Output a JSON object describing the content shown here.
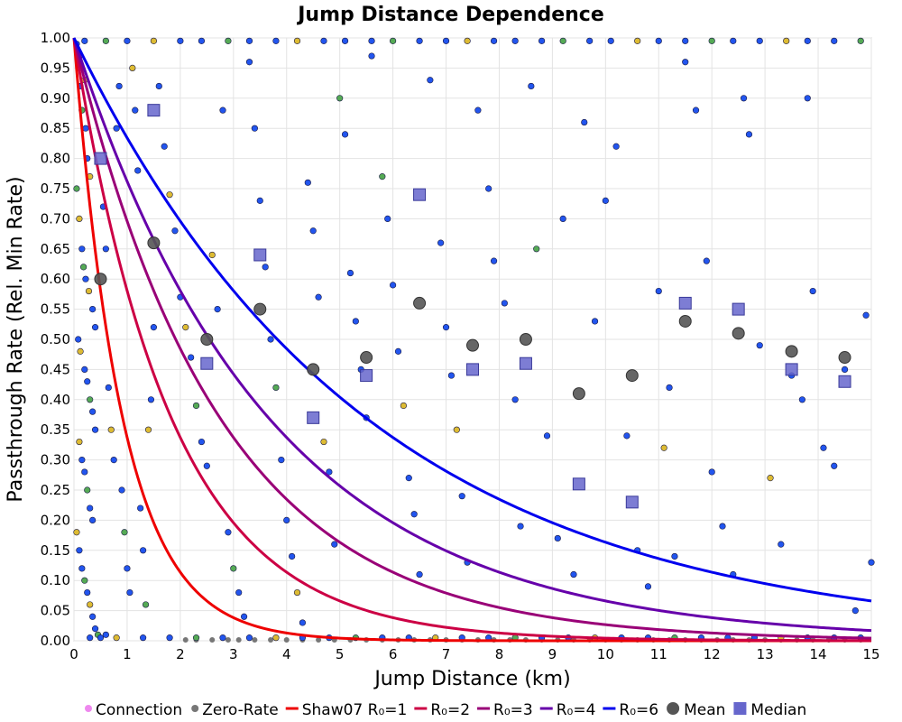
{
  "chart_data": {
    "type": "scatter",
    "title": "Jump Distance Dependence",
    "xlabel": "Jump Distance (km)",
    "ylabel": "Passthrough Rate (Rel. Min Rate)",
    "xlim": [
      0,
      15
    ],
    "ylim": [
      0,
      1
    ],
    "x_ticks": [
      0,
      1,
      2,
      3,
      4,
      5,
      6,
      7,
      8,
      9,
      10,
      11,
      12,
      13,
      14,
      15
    ],
    "y_ticks": [
      "0.00",
      "0.05",
      "0.10",
      "0.15",
      "0.20",
      "0.25",
      "0.30",
      "0.35",
      "0.40",
      "0.45",
      "0.50",
      "0.55",
      "0.60",
      "0.65",
      "0.70",
      "0.75",
      "0.80",
      "0.85",
      "0.90",
      "0.95",
      "1.00"
    ],
    "grid": true,
    "legend_position": "bottom",
    "legend": [
      {
        "label": "Connection",
        "kind": "dot",
        "color": "#ee88ee"
      },
      {
        "label": "Zero-Rate",
        "kind": "dot",
        "color": "#777777"
      },
      {
        "label": "Shaw07 R₀=1",
        "kind": "line",
        "color": "#ee0000"
      },
      {
        "label": "R₀=2",
        "kind": "line",
        "color": "#cc0044"
      },
      {
        "label": "R₀=3",
        "kind": "line",
        "color": "#990077"
      },
      {
        "label": "R₀=4",
        "kind": "line",
        "color": "#6600aa"
      },
      {
        "label": "R₀=6",
        "kind": "line",
        "color": "#0000ee"
      },
      {
        "label": "Mean",
        "kind": "circle",
        "color": "#555555"
      },
      {
        "label": "Median",
        "kind": "square",
        "color": "#6666cc"
      }
    ],
    "curves": [
      {
        "name": "Shaw07 R₀=1",
        "r0": 1,
        "color": "#ee0000"
      },
      {
        "name": "R₀=2",
        "r0": 2,
        "color": "#cc0044"
      },
      {
        "name": "R₀=3",
        "r0": 3,
        "color": "#990077"
      },
      {
        "name": "R₀=4",
        "r0": 4,
        "color": "#6600aa"
      },
      {
        "name": "R₀=6",
        "r0": 6,
        "color": "#0000ee"
      }
    ],
    "mean": {
      "x": [
        0.5,
        1.5,
        2.5,
        3.5,
        4.5,
        5.5,
        6.5,
        7.5,
        8.5,
        9.5,
        10.5,
        11.5,
        12.5,
        13.5,
        14.5
      ],
      "y": [
        0.6,
        0.66,
        0.5,
        0.55,
        0.45,
        0.47,
        0.56,
        0.49,
        0.5,
        0.41,
        0.44,
        0.53,
        0.51,
        0.48,
        0.47
      ]
    },
    "median": {
      "x": [
        0.5,
        1.5,
        2.5,
        3.5,
        4.5,
        5.5,
        6.5,
        7.5,
        8.5,
        9.5,
        10.5,
        11.5,
        12.5,
        13.5,
        14.5
      ],
      "y": [
        0.8,
        0.88,
        0.46,
        0.64,
        0.37,
        0.44,
        0.74,
        0.45,
        0.46,
        0.26,
        0.23,
        0.56,
        0.55,
        0.45,
        0.43
      ]
    },
    "connection_points": {
      "note_colors": [
        "#2255ee",
        "#55aa55",
        "#ddbb33"
      ],
      "points": [
        [
          0.05,
          0.99,
          0
        ],
        [
          0.1,
          0.97,
          2
        ],
        [
          0.12,
          0.92,
          0
        ],
        [
          0.15,
          0.88,
          1
        ],
        [
          0.2,
          0.93,
          2
        ],
        [
          0.22,
          0.85,
          0
        ],
        [
          0.25,
          0.8,
          0
        ],
        [
          0.3,
          0.77,
          2
        ],
        [
          0.05,
          0.75,
          1
        ],
        [
          0.1,
          0.7,
          2
        ],
        [
          0.15,
          0.65,
          0
        ],
        [
          0.18,
          0.62,
          1
        ],
        [
          0.22,
          0.6,
          0
        ],
        [
          0.28,
          0.58,
          2
        ],
        [
          0.35,
          0.55,
          0
        ],
        [
          0.4,
          0.52,
          0
        ],
        [
          0.08,
          0.5,
          0
        ],
        [
          0.12,
          0.48,
          2
        ],
        [
          0.2,
          0.45,
          0
        ],
        [
          0.25,
          0.43,
          0
        ],
        [
          0.3,
          0.4,
          1
        ],
        [
          0.35,
          0.38,
          0
        ],
        [
          0.4,
          0.35,
          0
        ],
        [
          0.1,
          0.33,
          2
        ],
        [
          0.15,
          0.3,
          0
        ],
        [
          0.2,
          0.28,
          0
        ],
        [
          0.25,
          0.25,
          1
        ],
        [
          0.3,
          0.22,
          0
        ],
        [
          0.35,
          0.2,
          0
        ],
        [
          0.05,
          0.18,
          2
        ],
        [
          0.1,
          0.15,
          0
        ],
        [
          0.15,
          0.12,
          0
        ],
        [
          0.2,
          0.1,
          1
        ],
        [
          0.25,
          0.08,
          0
        ],
        [
          0.3,
          0.06,
          2
        ],
        [
          0.35,
          0.04,
          0
        ],
        [
          0.4,
          0.02,
          0
        ],
        [
          0.45,
          0.01,
          1
        ],
        [
          0.5,
          0.005,
          0
        ],
        [
          0.6,
          0.01,
          0
        ],
        [
          0.55,
          0.72,
          0
        ],
        [
          0.6,
          0.65,
          0
        ],
        [
          0.65,
          0.42,
          0
        ],
        [
          0.7,
          0.35,
          2
        ],
        [
          0.75,
          0.3,
          0
        ],
        [
          0.8,
          0.85,
          0
        ],
        [
          0.85,
          0.92,
          0
        ],
        [
          0.9,
          0.25,
          0
        ],
        [
          0.95,
          0.18,
          1
        ],
        [
          1.0,
          0.12,
          0
        ],
        [
          1.05,
          0.08,
          0
        ],
        [
          1.1,
          0.95,
          2
        ],
        [
          1.15,
          0.88,
          0
        ],
        [
          1.2,
          0.78,
          0
        ],
        [
          1.25,
          0.22,
          0
        ],
        [
          1.3,
          0.15,
          0
        ],
        [
          1.35,
          0.06,
          1
        ],
        [
          1.4,
          0.35,
          2
        ],
        [
          1.45,
          0.4,
          0
        ],
        [
          1.5,
          0.52,
          0
        ],
        [
          1.6,
          0.92,
          0
        ],
        [
          1.7,
          0.82,
          0
        ],
        [
          1.8,
          0.74,
          2
        ],
        [
          1.9,
          0.68,
          0
        ],
        [
          2.0,
          0.57,
          0
        ],
        [
          2.1,
          0.52,
          2
        ],
        [
          2.2,
          0.47,
          0
        ],
        [
          2.3,
          0.39,
          1
        ],
        [
          2.4,
          0.33,
          0
        ],
        [
          2.5,
          0.29,
          0
        ],
        [
          2.6,
          0.64,
          2
        ],
        [
          2.7,
          0.55,
          0
        ],
        [
          2.8,
          0.88,
          0
        ],
        [
          2.9,
          0.18,
          0
        ],
        [
          3.0,
          0.12,
          1
        ],
        [
          3.1,
          0.08,
          0
        ],
        [
          3.2,
          0.04,
          0
        ],
        [
          3.3,
          0.96,
          0
        ],
        [
          3.4,
          0.85,
          0
        ],
        [
          3.5,
          0.73,
          0
        ],
        [
          3.6,
          0.62,
          0
        ],
        [
          3.7,
          0.5,
          0
        ],
        [
          3.8,
          0.42,
          1
        ],
        [
          3.9,
          0.3,
          0
        ],
        [
          4.0,
          0.2,
          0
        ],
        [
          4.1,
          0.14,
          0
        ],
        [
          4.2,
          0.08,
          2
        ],
        [
          4.3,
          0.03,
          0
        ],
        [
          4.4,
          0.76,
          0
        ],
        [
          4.5,
          0.68,
          0
        ],
        [
          4.6,
          0.57,
          0
        ],
        [
          4.7,
          0.33,
          2
        ],
        [
          4.8,
          0.28,
          0
        ],
        [
          4.9,
          0.16,
          0
        ],
        [
          5.0,
          0.9,
          1
        ],
        [
          5.1,
          0.84,
          0
        ],
        [
          5.2,
          0.61,
          0
        ],
        [
          5.3,
          0.53,
          0
        ],
        [
          5.4,
          0.45,
          0
        ],
        [
          5.5,
          0.37,
          0
        ],
        [
          5.6,
          0.97,
          0
        ],
        [
          5.8,
          0.77,
          1
        ],
        [
          5.9,
          0.7,
          0
        ],
        [
          6.0,
          0.59,
          0
        ],
        [
          6.1,
          0.48,
          0
        ],
        [
          6.2,
          0.39,
          2
        ],
        [
          6.3,
          0.27,
          0
        ],
        [
          6.4,
          0.21,
          0
        ],
        [
          6.5,
          0.11,
          0
        ],
        [
          6.7,
          0.93,
          0
        ],
        [
          6.9,
          0.66,
          0
        ],
        [
          7.0,
          0.52,
          0
        ],
        [
          7.1,
          0.44,
          0
        ],
        [
          7.2,
          0.35,
          2
        ],
        [
          7.3,
          0.24,
          0
        ],
        [
          7.4,
          0.13,
          0
        ],
        [
          7.6,
          0.88,
          0
        ],
        [
          7.8,
          0.75,
          0
        ],
        [
          7.9,
          0.63,
          0
        ],
        [
          8.1,
          0.56,
          0
        ],
        [
          8.3,
          0.4,
          0
        ],
        [
          8.4,
          0.19,
          0
        ],
        [
          8.6,
          0.92,
          0
        ],
        [
          8.7,
          0.65,
          1
        ],
        [
          8.9,
          0.34,
          0
        ],
        [
          9.1,
          0.17,
          0
        ],
        [
          9.2,
          0.7,
          0
        ],
        [
          9.4,
          0.11,
          0
        ],
        [
          9.6,
          0.86,
          0
        ],
        [
          9.8,
          0.53,
          0
        ],
        [
          10.0,
          0.73,
          0
        ],
        [
          10.2,
          0.82,
          0
        ],
        [
          10.4,
          0.34,
          0
        ],
        [
          10.6,
          0.15,
          0
        ],
        [
          10.8,
          0.09,
          0
        ],
        [
          11.0,
          0.58,
          0
        ],
        [
          11.1,
          0.32,
          2
        ],
        [
          11.2,
          0.42,
          0
        ],
        [
          11.3,
          0.14,
          0
        ],
        [
          11.5,
          0.96,
          0
        ],
        [
          11.7,
          0.88,
          0
        ],
        [
          11.9,
          0.63,
          0
        ],
        [
          12.0,
          0.28,
          0
        ],
        [
          12.2,
          0.19,
          0
        ],
        [
          12.4,
          0.11,
          0
        ],
        [
          12.6,
          0.9,
          0
        ],
        [
          12.7,
          0.84,
          0
        ],
        [
          12.9,
          0.49,
          0
        ],
        [
          13.1,
          0.27,
          2
        ],
        [
          13.3,
          0.16,
          0
        ],
        [
          13.5,
          0.44,
          0
        ],
        [
          13.7,
          0.4,
          0
        ],
        [
          13.8,
          0.9,
          0
        ],
        [
          13.9,
          0.58,
          0
        ],
        [
          14.1,
          0.32,
          0
        ],
        [
          14.3,
          0.29,
          0
        ],
        [
          14.5,
          0.45,
          0
        ],
        [
          14.7,
          0.05,
          0
        ],
        [
          14.9,
          0.54,
          0
        ],
        [
          15.0,
          0.13,
          0
        ],
        [
          0.2,
          0.995,
          0
        ],
        [
          0.6,
          0.995,
          1
        ],
        [
          1.0,
          0.995,
          0
        ],
        [
          1.5,
          0.995,
          2
        ],
        [
          2.0,
          0.995,
          0
        ],
        [
          2.4,
          0.995,
          0
        ],
        [
          2.9,
          0.995,
          1
        ],
        [
          3.3,
          0.995,
          0
        ],
        [
          3.8,
          0.995,
          0
        ],
        [
          4.2,
          0.995,
          2
        ],
        [
          4.7,
          0.995,
          0
        ],
        [
          5.1,
          0.995,
          0
        ],
        [
          5.6,
          0.995,
          0
        ],
        [
          6.0,
          0.995,
          1
        ],
        [
          6.5,
          0.995,
          0
        ],
        [
          7.0,
          0.995,
          0
        ],
        [
          7.4,
          0.995,
          2
        ],
        [
          7.9,
          0.995,
          0
        ],
        [
          8.3,
          0.995,
          0
        ],
        [
          8.8,
          0.995,
          0
        ],
        [
          9.2,
          0.995,
          1
        ],
        [
          9.7,
          0.995,
          0
        ],
        [
          10.1,
          0.995,
          0
        ],
        [
          10.6,
          0.995,
          2
        ],
        [
          11.0,
          0.995,
          0
        ],
        [
          11.5,
          0.995,
          0
        ],
        [
          12.0,
          0.995,
          1
        ],
        [
          12.4,
          0.995,
          0
        ],
        [
          12.9,
          0.995,
          0
        ],
        [
          13.4,
          0.995,
          2
        ],
        [
          13.8,
          0.995,
          0
        ],
        [
          14.3,
          0.995,
          0
        ],
        [
          14.8,
          0.995,
          1
        ],
        [
          0.3,
          0.005,
          0
        ],
        [
          0.8,
          0.005,
          2
        ],
        [
          1.3,
          0.005,
          0
        ],
        [
          1.8,
          0.005,
          0
        ],
        [
          2.3,
          0.005,
          1
        ],
        [
          2.8,
          0.005,
          0
        ],
        [
          3.3,
          0.005,
          0
        ],
        [
          3.8,
          0.005,
          2
        ],
        [
          4.3,
          0.005,
          0
        ],
        [
          4.8,
          0.005,
          0
        ],
        [
          5.3,
          0.005,
          1
        ],
        [
          5.8,
          0.005,
          0
        ],
        [
          6.3,
          0.005,
          0
        ],
        [
          6.8,
          0.005,
          2
        ],
        [
          7.3,
          0.005,
          0
        ],
        [
          7.8,
          0.005,
          0
        ],
        [
          8.3,
          0.005,
          1
        ],
        [
          8.8,
          0.005,
          0
        ],
        [
          9.3,
          0.005,
          0
        ],
        [
          9.8,
          0.005,
          2
        ],
        [
          10.3,
          0.005,
          0
        ],
        [
          10.8,
          0.005,
          0
        ],
        [
          11.3,
          0.005,
          1
        ],
        [
          11.8,
          0.005,
          0
        ],
        [
          12.3,
          0.005,
          0
        ],
        [
          12.8,
          0.005,
          0
        ],
        [
          13.3,
          0.005,
          2
        ],
        [
          13.8,
          0.005,
          0
        ],
        [
          14.3,
          0.005,
          0
        ],
        [
          14.8,
          0.005,
          0
        ]
      ]
    },
    "zero_rate_points": {
      "color": "#777777",
      "x": [
        2.1,
        2.3,
        2.6,
        2.9,
        3.1,
        3.4,
        3.7,
        4.0,
        4.3,
        4.6,
        4.9,
        5.2,
        5.5,
        5.8,
        6.1,
        6.4,
        6.7,
        7.0,
        7.3,
        7.6,
        7.9,
        8.2,
        8.5,
        8.8,
        9.1,
        9.4,
        9.7,
        10.0,
        10.3,
        10.6,
        10.9,
        11.2,
        11.5,
        11.8,
        12.1,
        12.4,
        12.7,
        13.0,
        13.3,
        13.6,
        13.9,
        14.2,
        14.5,
        14.8
      ],
      "y": 0
    }
  }
}
